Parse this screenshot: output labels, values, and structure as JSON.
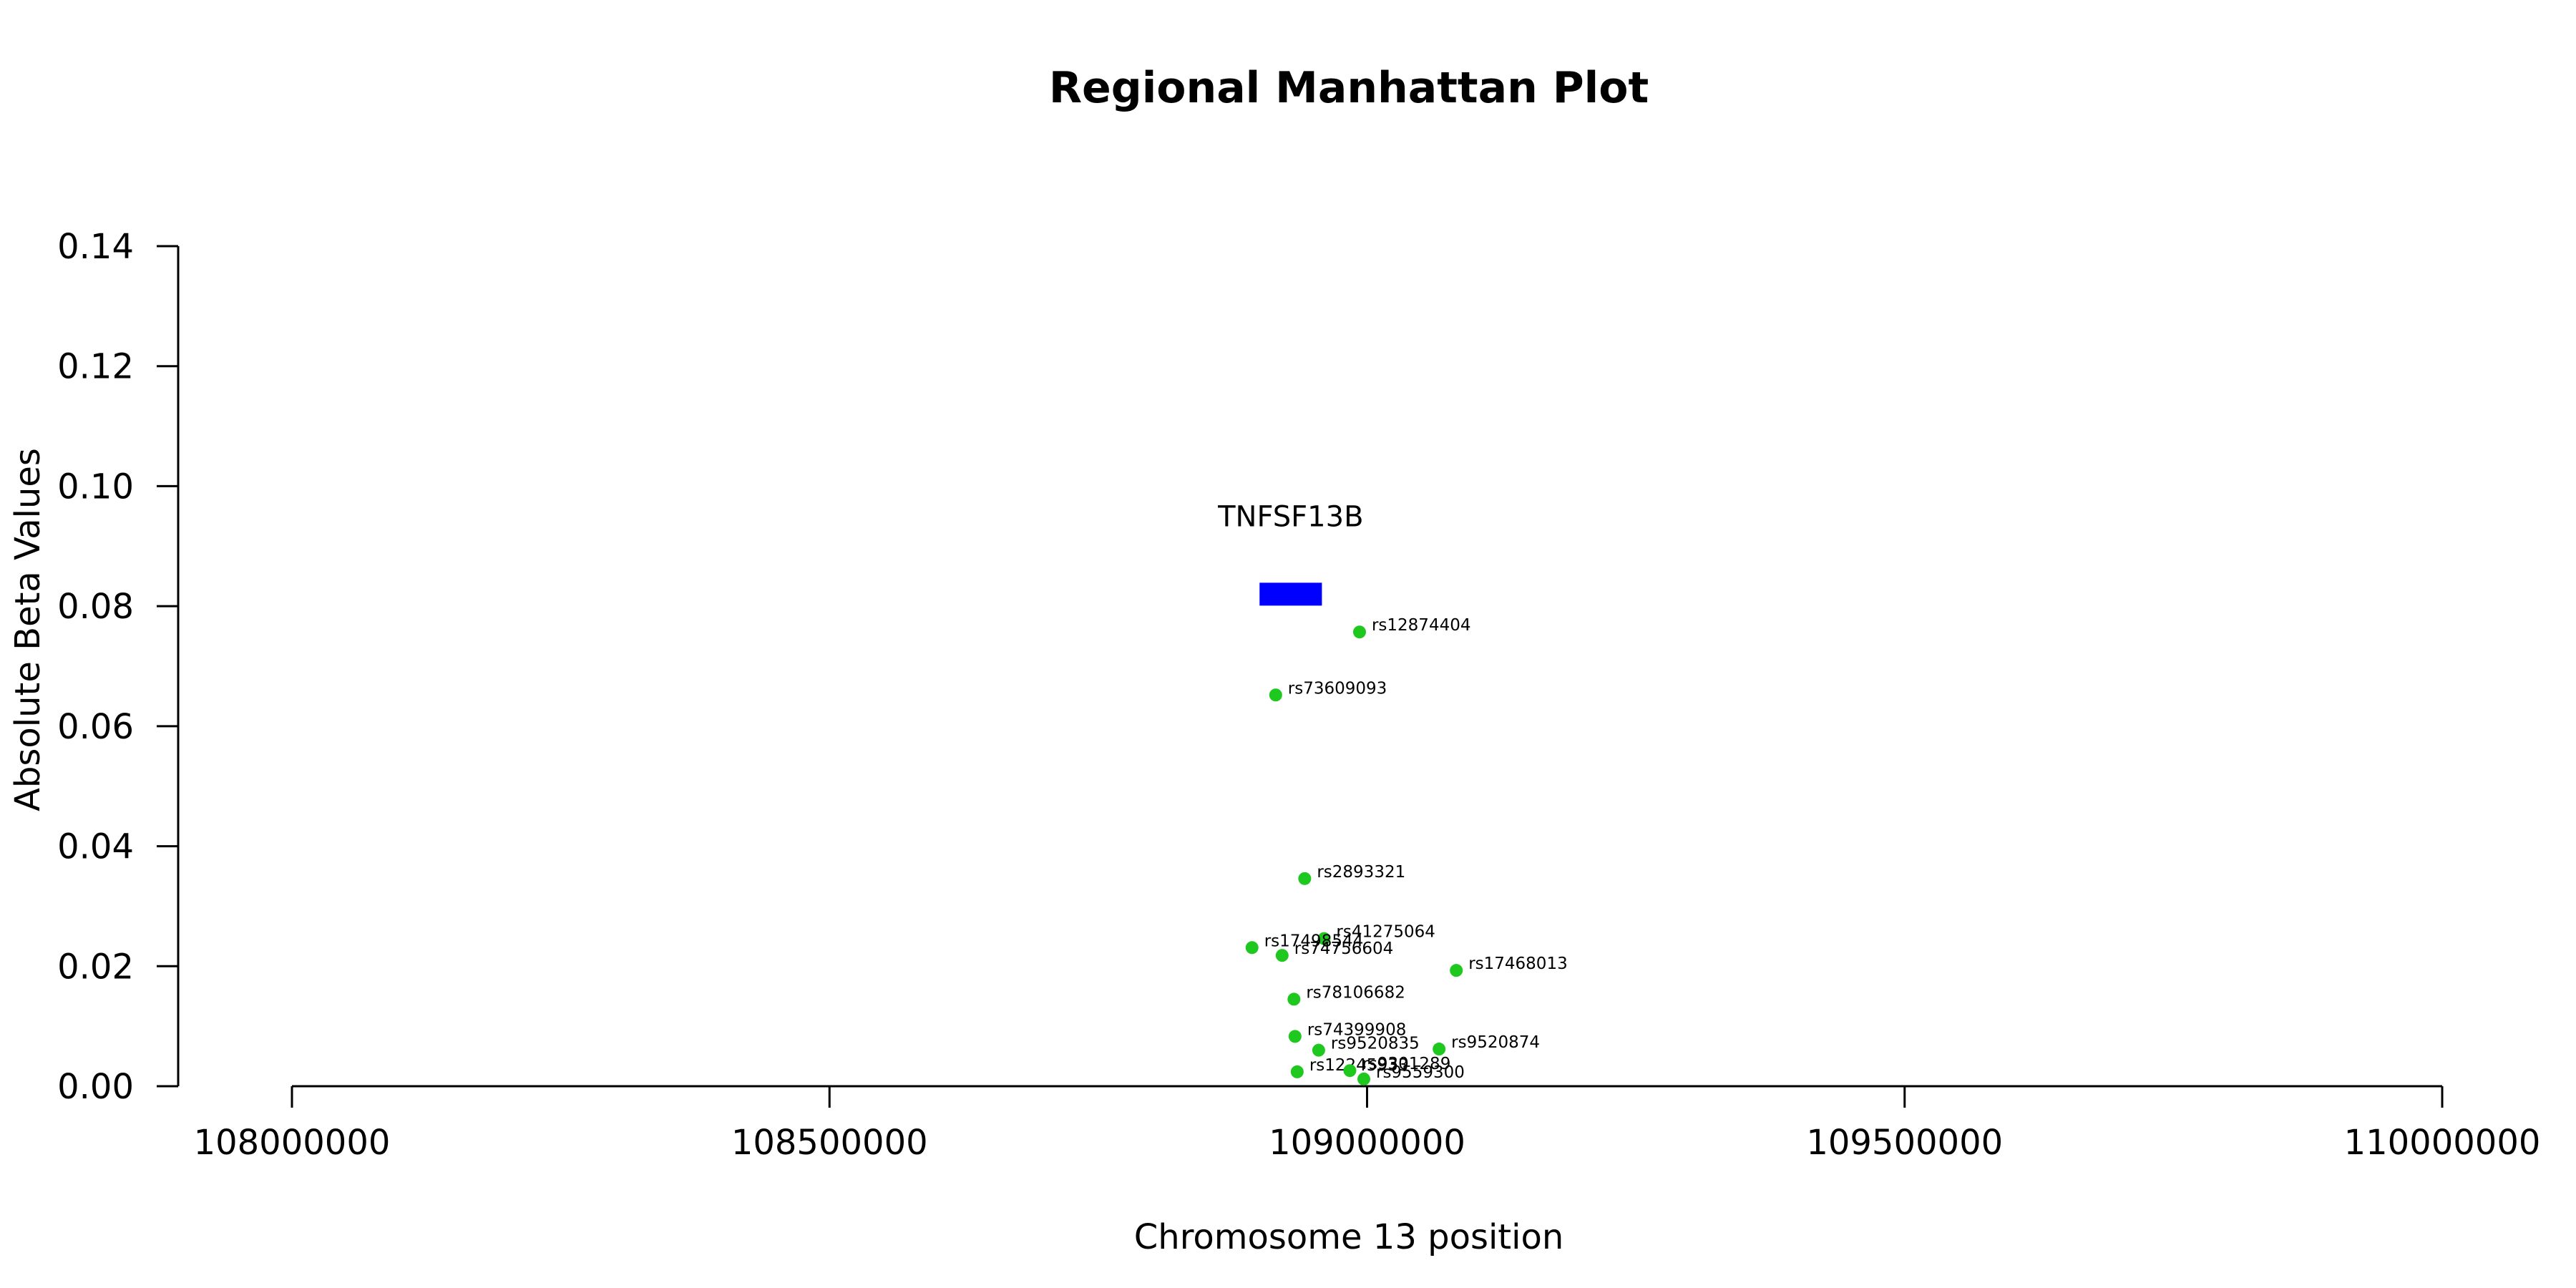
{
  "chart_data": {
    "type": "scatter",
    "title": "Regional Manhattan Plot",
    "xlabel": "Chromosome 13 position",
    "ylabel": "Absolute Beta Values",
    "xlim": [
      108000000,
      110000000
    ],
    "ylim": [
      0,
      0.14
    ],
    "x_ticks": [
      108000000,
      108500000,
      109000000,
      109500000,
      110000000
    ],
    "x_tick_labels": [
      "108000000",
      "108500000",
      "109000000",
      "109500000",
      "110000000"
    ],
    "y_ticks": [
      0,
      0.02,
      0.04,
      0.06,
      0.08,
      0.1,
      0.12,
      0.14
    ],
    "y_tick_labels": [
      "0.00",
      "0.02",
      "0.04",
      "0.06",
      "0.08",
      "0.10",
      "0.12",
      "0.14"
    ],
    "grid": false,
    "point_color": "#1ec81e",
    "gene": {
      "name": "TNFSF13B",
      "start": 108900000,
      "end": 108958000,
      "y": 0.082,
      "color": "#0000ff"
    },
    "points": [
      {
        "label": "rs12874404",
        "x": 108993000,
        "y": 0.0757
      },
      {
        "label": "rs73609093",
        "x": 108915000,
        "y": 0.0652
      },
      {
        "label": "rs2893321",
        "x": 108942000,
        "y": 0.0346
      },
      {
        "label": "rs41275064",
        "x": 108960000,
        "y": 0.0246
      },
      {
        "label": "rs17498544",
        "x": 108893000,
        "y": 0.0231
      },
      {
        "label": "rs74756604",
        "x": 108921000,
        "y": 0.0218
      },
      {
        "label": "rs17468013",
        "x": 109083000,
        "y": 0.0193
      },
      {
        "label": "rs78106682",
        "x": 108932000,
        "y": 0.0145
      },
      {
        "label": "rs74399908",
        "x": 108933000,
        "y": 0.0083
      },
      {
        "label": "rs9520835",
        "x": 108955000,
        "y": 0.006
      },
      {
        "label": "rs9520874",
        "x": 109067000,
        "y": 0.0062
      },
      {
        "label": "rs12245933",
        "x": 108935000,
        "y": 0.0024
      },
      {
        "label": "rs9301289",
        "x": 108984000,
        "y": 0.0026
      },
      {
        "label": "rs9559300",
        "x": 108997000,
        "y": 0.0012
      }
    ]
  }
}
